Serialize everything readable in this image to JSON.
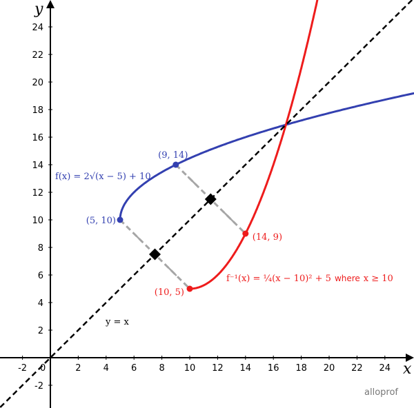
{
  "chart_data": {
    "type": "line",
    "xlabel": "x",
    "ylabel": "y",
    "xlim": [
      -3.6,
      26.1
    ],
    "ylim": [
      -3.6,
      25.9
    ],
    "x_ticks": [
      "-2",
      "2",
      "4",
      "6",
      "8",
      "10",
      "12",
      "14",
      "16",
      "18",
      "20",
      "22",
      "24"
    ],
    "y_ticks": [
      "-2",
      "2",
      "4",
      "6",
      "8",
      "10",
      "12",
      "14",
      "16",
      "18",
      "20",
      "22",
      "24"
    ],
    "origin_label": "0",
    "grid": false,
    "series": [
      {
        "name": "f(x) = 2√(x − 5) + 10",
        "color": "#3340b0",
        "domain": [
          5,
          26.1
        ],
        "formula": "2*sqrt(x-5)+10",
        "style": "solid"
      },
      {
        "name": "f⁻¹(x) = ¼(x − 10)² + 5 where x ≥ 10",
        "color": "#ee1c1c",
        "domain": [
          10,
          19.3
        ],
        "formula": "0.25*(x-10)^2+5",
        "style": "solid"
      },
      {
        "name": "y = x",
        "color": "#000000",
        "domain": [
          -3.6,
          26.1
        ],
        "formula": "x",
        "style": "dashed"
      }
    ],
    "points": [
      {
        "label": "(5, 10)",
        "x": 5,
        "y": 10,
        "color": "#3340b0"
      },
      {
        "label": "(9, 14)",
        "x": 9,
        "y": 14,
        "color": "#3340b0"
      },
      {
        "label": "(10, 5)",
        "x": 10,
        "y": 5,
        "color": "#ee1c1c"
      },
      {
        "label": "(14, 9)",
        "x": 14,
        "y": 9,
        "color": "#ee1c1c"
      }
    ],
    "symmetry_segments": [
      {
        "from": [
          5,
          10
        ],
        "to": [
          10,
          5
        ],
        "midpoint": [
          7.5,
          7.5
        ],
        "tick_marks": 1
      },
      {
        "from": [
          9,
          14
        ],
        "to": [
          14,
          9
        ],
        "midpoint": [
          11.5,
          11.5
        ],
        "tick_marks": 2
      }
    ],
    "segment_color": "#a6a6a6",
    "annotations": {
      "f_label": "f(x) = 2√(x − 5) + 10",
      "finv_label_main": "f⁻¹(x) = ¼(x − 10)² + 5",
      "finv_label_where": "where",
      "finv_label_cond": "x ≥ 10",
      "identity_label": "y = x"
    }
  },
  "watermark": "alloprof"
}
